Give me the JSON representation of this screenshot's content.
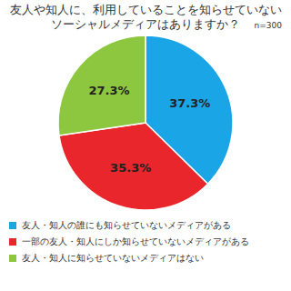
{
  "chart_data": {
    "type": "pie",
    "title": "友人や知人に、利用していることを知らせていない\nソーシャルメディアはありますか？",
    "annotations": [
      "n=300"
    ],
    "categories": [
      "友人・知人の誰にも知らせていないメディアがある",
      "一部の友人・知人にしか知らせていないメディアがある",
      "友人・知人に知らせていないメディアはない"
    ],
    "values": [
      37.3,
      35.3,
      27.3
    ],
    "value_labels": [
      "37.3%",
      "35.3%",
      "27.3%"
    ],
    "colors": [
      "#1aa6e6",
      "#e8262b",
      "#8dc63f"
    ],
    "data_labels": true,
    "legend": "bottom"
  }
}
